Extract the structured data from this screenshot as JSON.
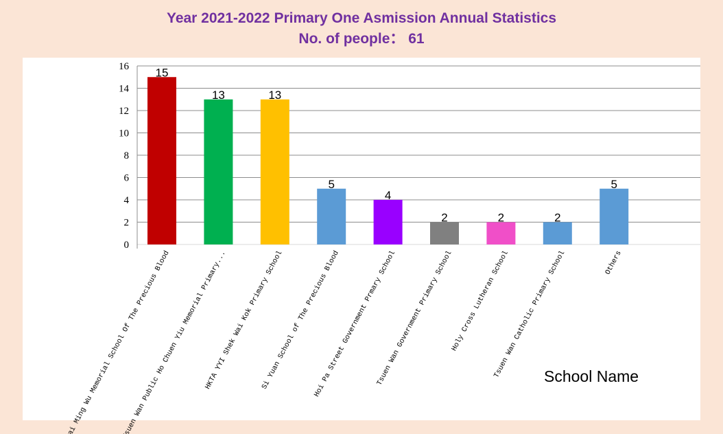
{
  "chart_data": {
    "type": "bar",
    "title": "Year 2021-2022 Primary One Asmission Annual Statistics",
    "subtitle": "No. of people： 61",
    "xlabel": "School Name",
    "ylabel": "",
    "ylim": [
      0,
      16
    ],
    "yticks": [
      "0",
      "2",
      "4",
      "6",
      "8",
      "10",
      "12",
      "14",
      "16"
    ],
    "grid": true,
    "legend": "none",
    "categories": [
      "Kwai Ming Wu Memorial School Of The Precious Blood",
      "Tsuen Wan Public Ho Chuen Yiu Memorial Primary...",
      "HKTA YYI Shek Wai Kok Primary School",
      "Si Yuan School of The Precious Blood",
      "Hoi Pa Street Government Prmary School",
      "Tsuen Wan Government Primary School",
      "Holy Cross Lutheran School",
      "Tsuen Wan Catholic Primary School",
      "Others"
    ],
    "values": [
      15,
      13,
      13,
      5,
      4,
      2,
      2,
      2,
      5
    ],
    "data_labels": [
      "15",
      "13",
      "13",
      "5",
      "4",
      "2",
      "2",
      "2",
      "5"
    ],
    "colors": [
      "#c00000",
      "#00b050",
      "#ffc000",
      "#5b9bd5",
      "#9900ff",
      "#808080",
      "#f04fc8",
      "#5b9bd5",
      "#5b9bd5"
    ]
  }
}
